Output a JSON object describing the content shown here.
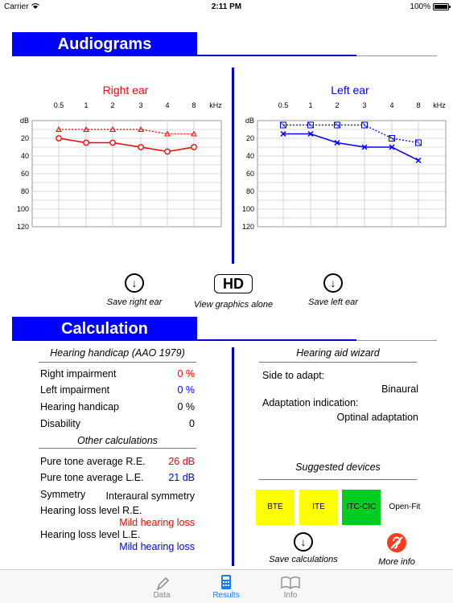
{
  "status": {
    "carrier": "Carrier",
    "time": "2:11 PM",
    "battery": "100%"
  },
  "audiograms": {
    "title": "Audiograms",
    "freq_labels": [
      "0.5",
      "1",
      "2",
      "3",
      "4",
      "8"
    ],
    "khz": "kHz",
    "db_label": "dB",
    "db_ticks": [
      "20",
      "40",
      "60",
      "80",
      "100",
      "120"
    ],
    "right": {
      "title": "Right ear",
      "color": "#ff0000",
      "air": [
        20,
        25,
        25,
        30,
        35,
        30
      ],
      "bone": [
        10,
        10,
        10,
        10,
        15,
        15
      ]
    },
    "left": {
      "title": "Left ear",
      "color": "#0000ff",
      "air": [
        15,
        15,
        25,
        30,
        30,
        45
      ],
      "bone": [
        5,
        5,
        5,
        5,
        20,
        25
      ]
    }
  },
  "actions": {
    "save_right": "Save right ear",
    "view_alone": "View graphics alone",
    "hd": "HD",
    "save_left": "Save left ear",
    "arrow": "↓"
  },
  "calculation": {
    "title": "Calculation",
    "handicap_head": "Hearing handicap (AAO 1979)",
    "right_imp_label": "Right impairment",
    "right_imp": "0 %",
    "left_imp_label": "Left impairment",
    "left_imp": "0 %",
    "handicap_label": "Hearing handicap",
    "handicap": "0 %",
    "disability_label": "Disability",
    "disability": "0",
    "other_head": "Other calculations",
    "pta_re_label": "Pure tone average R.E.",
    "pta_re": "26 dB",
    "pta_le_label": "Pure tone average L.E.",
    "pta_le": "21 dB",
    "symmetry_label": "Symmetry",
    "symmetry": "Interaural symmetry",
    "hll_re_label": "Hearing loss level R.E.",
    "hll_re": "Mild hearing loss",
    "hll_le_label": "Hearing loss level L.E.",
    "hll_le": "Mild hearing loss"
  },
  "wizard": {
    "head": "Hearing aid wizard",
    "side_label": "Side to adapt:",
    "side": "Binaural",
    "indication_label": "Adaptation indication:",
    "indication": "Optinal adaptation",
    "devices_head": "Suggested devices",
    "devices": [
      "BTE",
      "ITE",
      "ITC-CIC",
      "Open-Fit"
    ],
    "save_calc": "Save calculations",
    "more_info": "More info"
  },
  "tabs": {
    "data": "Data",
    "results": "Results",
    "info": "Info"
  }
}
